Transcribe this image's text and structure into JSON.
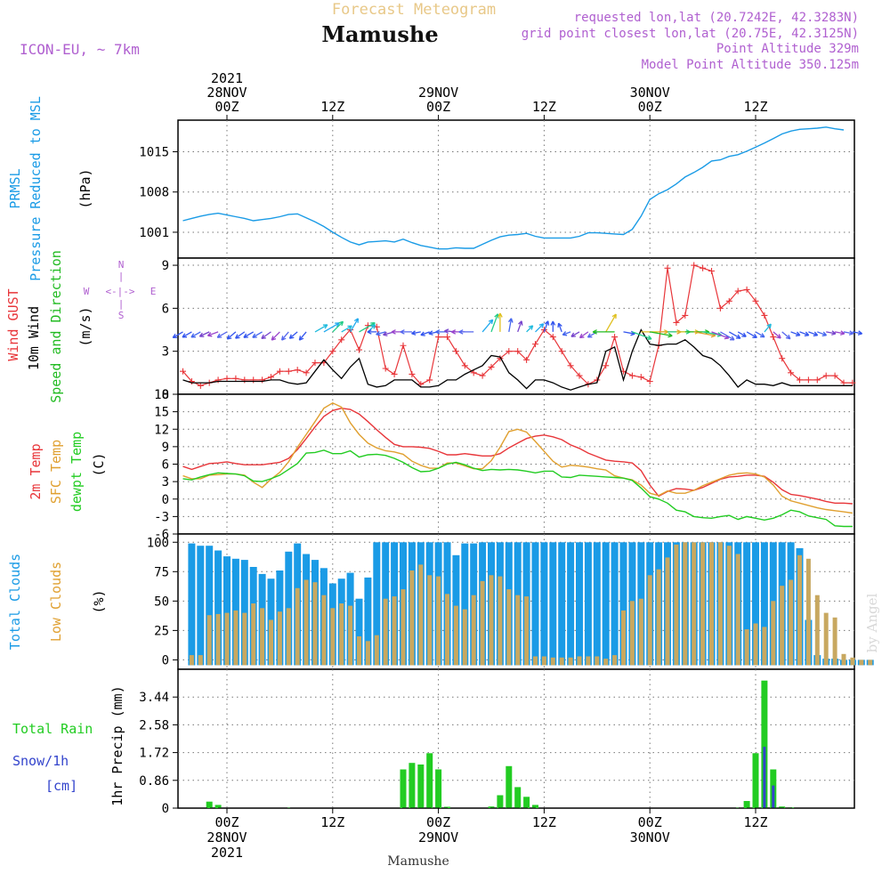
{
  "header": {
    "title_top": "Forecast Meteogram",
    "station": "Mamushe",
    "model": "ICON-EU, ~ 7km",
    "requested": "requested lon,lat (20.7242E, 42.3283N)",
    "gridpoint": "grid point closest lon,lat (20.75E, 42.3125N)",
    "point_alt": "Point Altitude 329m",
    "model_alt": "Model Point Altitude 350.125m",
    "bottom_label": "Mamushe",
    "watermark": "by Angel"
  },
  "colors": {
    "pressure": "#1a9be6",
    "gust": "#e8363a",
    "wind": "#000000",
    "dir": "#22bb22",
    "temp2m": "#e8363a",
    "sfc": "#e0a030",
    "dew": "#22cc22",
    "total_clouds": "#1a9be6",
    "low_clouds": "#c8a860",
    "rain": "#22cc22",
    "snow": "#3344cc",
    "purple": "#b060d0"
  },
  "time_axis": {
    "top_ticks": [
      {
        "h": 0,
        "lines": [
          "2021",
          "28NOV",
          "00Z"
        ]
      },
      {
        "h": 12,
        "lines": [
          "12Z"
        ]
      },
      {
        "h": 24,
        "lines": [
          "29NOV",
          "00Z"
        ]
      },
      {
        "h": 36,
        "lines": [
          "12Z"
        ]
      },
      {
        "h": 48,
        "lines": [
          "30NOV",
          "00Z"
        ]
      },
      {
        "h": 60,
        "lines": [
          "12Z"
        ]
      }
    ],
    "bottom_ticks": [
      {
        "h": 0,
        "lines": [
          "00Z",
          "28NOV",
          "2021"
        ]
      },
      {
        "h": 12,
        "lines": [
          "12Z"
        ]
      },
      {
        "h": 24,
        "lines": [
          "00Z",
          "29NOV"
        ]
      },
      {
        "h": 36,
        "lines": [
          "12Z"
        ]
      },
      {
        "h": 48,
        "lines": [
          "00Z",
          "30NOV"
        ]
      },
      {
        "h": 60,
        "lines": [
          "12Z"
        ]
      }
    ]
  },
  "panels": {
    "pressure": {
      "labels": [
        "PRMSL",
        "Pressure Reduced to MSL"
      ],
      "unit": "(hPa)",
      "ticks": [
        "1015",
        "1008",
        "1001"
      ]
    },
    "wind": {
      "labels": [
        "Wind GUST",
        "10m Wind",
        "Speed and Direction"
      ],
      "unit": "(m/s)",
      "ticks": [
        "9",
        "6",
        "3",
        "0"
      ],
      "compass": {
        "n": "N",
        "s": "S",
        "w": "W",
        "e": "E",
        "cross": "<-|->"
      }
    },
    "temp": {
      "labels": [
        "2m Temp",
        "SFC Temp",
        "dewpt Temp"
      ],
      "unit": "(C)",
      "ticks": [
        "18",
        "15",
        "12",
        "9",
        "6",
        "3",
        "0",
        "-3",
        "-6"
      ]
    },
    "clouds": {
      "labels": [
        "Total Clouds",
        "Low Clouds"
      ],
      "unit": "(%)",
      "ticks": [
        "100",
        "75",
        "50",
        "25",
        "0"
      ]
    },
    "precip": {
      "labels": [
        "Total  Rain",
        "Snow/1h",
        "[cm]"
      ],
      "unit": "1hr Precip (mm)",
      "ticks": [
        "3.44",
        "2.58",
        "1.72",
        "0.86",
        "0"
      ]
    }
  },
  "chart_data": [
    {
      "type": "line",
      "name": "pressure",
      "x_start_hour": -5,
      "x_step_hours": 1,
      "ylim": [
        996.5,
        1020.5
      ],
      "series": [
        {
          "values": [
            1003.0,
            1003.4,
            1003.8,
            1004.1,
            1004.3,
            1004.0,
            1003.7,
            1003.4,
            1003.0,
            1003.2,
            1003.4,
            1003.7,
            1004.1,
            1004.2,
            1003.5,
            1002.8,
            1002.0,
            1001.0,
            1000.1,
            999.3,
            998.8,
            999.3,
            999.4,
            999.5,
            999.3,
            999.8,
            999.2,
            998.7,
            998.4,
            998.1,
            998.1,
            998.3,
            998.2,
            998.2,
            998.9,
            999.6,
            1000.2,
            1000.5,
            1000.6,
            1000.8,
            1000.3,
            1000.0,
            1000.0,
            1000.0,
            1000.0,
            1000.3,
            1000.9,
            1000.9,
            1000.8,
            1000.7,
            1000.6,
            1001.5,
            1003.8,
            1006.7,
            1007.7,
            1008.4,
            1009.4,
            1010.6,
            1011.4,
            1012.3,
            1013.4,
            1013.6,
            1014.2,
            1014.5,
            1015.1,
            1015.8,
            1016.5,
            1017.3,
            1018.1,
            1018.6,
            1018.9,
            1019.0,
            1019.1,
            1019.3,
            1019.0,
            1018.8
          ]
        }
      ]
    },
    {
      "type": "line",
      "name": "wind",
      "x_start_hour": -5,
      "x_step_hours": 1,
      "ylim": [
        0,
        9.5
      ],
      "series": [
        {
          "name": "Wind GUST",
          "values": [
            1.6,
            0.9,
            0.6,
            0.8,
            1.0,
            1.1,
            1.1,
            1.0,
            1.0,
            1.0,
            1.2,
            1.6,
            1.6,
            1.7,
            1.5,
            2.2,
            2.2,
            3.0,
            3.8,
            4.5,
            3.1,
            4.8,
            4.7,
            1.8,
            1.4,
            3.4,
            1.4,
            0.7,
            1.0,
            4.0,
            4.0,
            3.0,
            2.0,
            1.5,
            1.3,
            1.9,
            2.5,
            3.0,
            3.0,
            2.4,
            3.5,
            4.5,
            4.0,
            3.0,
            2.0,
            1.3,
            0.7,
            1.0,
            2.0,
            4.0,
            1.6,
            1.3,
            1.2,
            0.9,
            3.4,
            8.8,
            5.0,
            5.5,
            9.0,
            8.8,
            8.6,
            6.0,
            6.5,
            7.2,
            7.3,
            6.5,
            5.5,
            4.0,
            2.5,
            1.5,
            1.0,
            1.0,
            1.0,
            1.3,
            1.3,
            0.8,
            0.8
          ]
        },
        {
          "name": "10m Wind",
          "values": [
            1.0,
            0.8,
            0.8,
            0.8,
            0.9,
            0.9,
            0.9,
            0.9,
            0.9,
            0.9,
            1.0,
            1.0,
            0.8,
            0.7,
            0.8,
            1.6,
            2.4,
            1.7,
            1.1,
            1.9,
            2.5,
            0.7,
            0.5,
            0.6,
            1.0,
            1.0,
            1.0,
            0.5,
            0.5,
            0.6,
            1.0,
            1.0,
            1.4,
            1.7,
            2.0,
            2.7,
            2.6,
            1.5,
            1.0,
            0.4,
            1.0,
            1.0,
            0.8,
            0.5,
            0.3,
            0.5,
            0.7,
            0.8,
            3.0,
            3.3,
            1.0,
            3.0,
            4.5,
            3.5,
            3.4,
            3.5,
            3.5,
            3.8,
            3.3,
            2.7,
            2.5,
            2.0,
            1.3,
            0.5,
            1.0,
            0.7,
            0.7,
            0.6,
            0.8,
            0.6,
            0.6,
            0.6,
            0.6,
            0.6,
            0.6,
            0.6,
            0.6
          ]
        }
      ]
    },
    {
      "type": "line",
      "name": "temp",
      "x_start_hour": -5,
      "x_step_hours": 1,
      "ylim": [
        -6,
        18
      ],
      "series": [
        {
          "name": "2m Temp",
          "values": [
            5.6,
            5.1,
            5.6,
            6.1,
            6.2,
            6.4,
            6.1,
            5.9,
            5.9,
            5.9,
            6.1,
            6.3,
            7.0,
            8.5,
            10.4,
            12.4,
            14.2,
            15.2,
            15.6,
            15.4,
            14.6,
            13.3,
            11.9,
            10.6,
            9.4,
            9.0,
            9.0,
            8.9,
            8.7,
            8.2,
            7.6,
            7.6,
            7.8,
            7.6,
            7.4,
            7.4,
            7.8,
            8.8,
            9.6,
            10.4,
            10.8,
            11.0,
            10.7,
            10.2,
            9.3,
            8.7,
            7.9,
            7.3,
            6.7,
            6.5,
            6.4,
            6.2,
            4.9,
            2.4,
            0.5,
            1.3,
            1.8,
            1.7,
            1.5,
            2.0,
            2.7,
            3.4,
            3.8,
            3.9,
            4.1,
            4.1,
            3.9,
            2.9,
            1.6,
            0.8,
            0.6,
            0.3,
            0.0,
            -0.4,
            -0.7,
            -0.7,
            -0.8
          ]
        },
        {
          "name": "SFC Temp",
          "values": [
            4.0,
            3.5,
            3.5,
            4.1,
            4.2,
            4.3,
            4.3,
            4.1,
            2.9,
            2.0,
            3.4,
            4.6,
            6.4,
            8.9,
            11.1,
            13.3,
            15.6,
            16.5,
            15.8,
            13.1,
            11.1,
            9.6,
            8.8,
            8.3,
            8.1,
            7.7,
            6.5,
            5.8,
            5.3,
            5.3,
            6.2,
            6.2,
            5.7,
            5.2,
            5.2,
            6.6,
            8.9,
            11.6,
            12.0,
            11.5,
            9.9,
            8.2,
            6.5,
            5.5,
            5.8,
            5.7,
            5.5,
            5.2,
            5.0,
            4.0,
            3.6,
            3.3,
            2.4,
            1.0,
            0.6,
            1.4,
            1.0,
            1.0,
            1.5,
            2.3,
            2.9,
            3.5,
            4.1,
            4.4,
            4.5,
            4.3,
            3.8,
            2.4,
            0.5,
            -0.3,
            -0.7,
            -1.1,
            -1.5,
            -1.8,
            -2.0,
            -2.2,
            -2.4
          ]
        },
        {
          "name": "dewpt Temp",
          "values": [
            3.5,
            3.3,
            3.8,
            4.2,
            4.5,
            4.4,
            4.3,
            4.0,
            3.1,
            3.0,
            3.5,
            4.1,
            5.1,
            6.1,
            7.9,
            8.0,
            8.4,
            7.8,
            7.8,
            8.3,
            7.2,
            7.6,
            7.7,
            7.5,
            7.0,
            6.3,
            5.4,
            4.7,
            4.8,
            5.3,
            6.0,
            6.3,
            5.9,
            5.3,
            4.9,
            5.1,
            5.0,
            5.1,
            5.0,
            4.8,
            4.5,
            4.8,
            4.8,
            3.8,
            3.7,
            4.1,
            4.0,
            3.9,
            3.8,
            3.7,
            3.6,
            3.2,
            1.9,
            0.4,
            0.0,
            -0.7,
            -1.9,
            -2.2,
            -3.0,
            -3.2,
            -3.3,
            -3.0,
            -2.8,
            -3.5,
            -3.0,
            -3.3,
            -3.6,
            -3.3,
            -2.7,
            -1.9,
            -2.2,
            -2.9,
            -3.2,
            -3.5,
            -4.6,
            -4.7,
            -4.7
          ]
        }
      ]
    },
    {
      "type": "bar",
      "name": "clouds",
      "x_start_hour": -4,
      "x_step_hours": 1,
      "ylim": [
        0,
        100
      ],
      "series": [
        {
          "name": "Total Clouds",
          "values": [
            99,
            97,
            97,
            93,
            88,
            86,
            85,
            79,
            73,
            69,
            76,
            92,
            99,
            90,
            85,
            78,
            65,
            69,
            74,
            52,
            70,
            100,
            100,
            100,
            100,
            100,
            100,
            100,
            100,
            100,
            89,
            99,
            99,
            100,
            100,
            100,
            100,
            100,
            100,
            100,
            100,
            100,
            100,
            100,
            100,
            100,
            100,
            100,
            100,
            100,
            100,
            100,
            100,
            100,
            100,
            100,
            100,
            100,
            100,
            100,
            100,
            100,
            100,
            100,
            100,
            100,
            100,
            100,
            100,
            95,
            34,
            4,
            1,
            1,
            0,
            0,
            0,
            0
          ]
        },
        {
          "name": "Low Clouds",
          "values": [
            4,
            4,
            38,
            39,
            40,
            42,
            40,
            48,
            44,
            34,
            41,
            44,
            61,
            68,
            66,
            55,
            44,
            48,
            46,
            20,
            16,
            21,
            52,
            54,
            60,
            76,
            81,
            72,
            71,
            56,
            46,
            43,
            55,
            67,
            72,
            71,
            60,
            55,
            54,
            3,
            3,
            2,
            2,
            2,
            3,
            3,
            3,
            1,
            4,
            42,
            50,
            52,
            72,
            77,
            87,
            98,
            100,
            100,
            100,
            100,
            100,
            97,
            90,
            26,
            31,
            28,
            50,
            63,
            68,
            89,
            86,
            55,
            40,
            36,
            5,
            2,
            0,
            0
          ]
        }
      ]
    },
    {
      "type": "bar",
      "name": "precip",
      "x_start_hour": -4,
      "x_step_hours": 1,
      "ylim": [
        0,
        4.3
      ],
      "series": [
        {
          "name": "Total Rain",
          "values": [
            0,
            0,
            0.2,
            0.1,
            0,
            0,
            0,
            0,
            0,
            0,
            0,
            0.01,
            0,
            0,
            0,
            0,
            0,
            0,
            0,
            0,
            0,
            0,
            0,
            0,
            1.2,
            1.4,
            1.35,
            1.7,
            1.2,
            0.04,
            0,
            0,
            0,
            0,
            0.05,
            0.4,
            1.3,
            0.65,
            0.35,
            0.1,
            0,
            0,
            0,
            0,
            0,
            0,
            0,
            0,
            0,
            0,
            0,
            0,
            0,
            0,
            0,
            0,
            0,
            0,
            0,
            0,
            0,
            0,
            0.01,
            0.22,
            1.7,
            3.95,
            1.2,
            0.05,
            0.02,
            0,
            0,
            0,
            0,
            0,
            0,
            0,
            0,
            0
          ]
        },
        {
          "name": "Snow/1h",
          "values": [
            0,
            0,
            0,
            0,
            0,
            0,
            0,
            0,
            0,
            0,
            0,
            0,
            0,
            0,
            0,
            0,
            0,
            0,
            0,
            0,
            0,
            0,
            0,
            0,
            0,
            0,
            0,
            0,
            0,
            0,
            0,
            0,
            0,
            0,
            0,
            0,
            0,
            0,
            0,
            0,
            0,
            0,
            0,
            0,
            0,
            0,
            0,
            0,
            0,
            0,
            0,
            0,
            0,
            0,
            0,
            0,
            0,
            0,
            0,
            0,
            0,
            0,
            0,
            0,
            0,
            1.9,
            0.7,
            0,
            0,
            0,
            0,
            0,
            0,
            0,
            0,
            0,
            0,
            0
          ]
        }
      ]
    },
    {
      "type": "vector",
      "name": "wind_direction_arrows",
      "x_start_hour": -5,
      "x_step_hours": 1,
      "series": [
        {
          "name": "Speed and Direction",
          "values": [
            240,
            240,
            240,
            245,
            250,
            240,
            230,
            235,
            240,
            240,
            235,
            225,
            220,
            230,
            220,
            60,
            60,
            45,
            60,
            30,
            60,
            45,
            270,
            255,
            255,
            270,
            270,
            260,
            250,
            260,
            270,
            275,
            270,
            270,
            40,
            20,
            0,
            10,
            20,
            45,
            45,
            20,
            0,
            340,
            250,
            240,
            235,
            240,
            30,
            270,
            100,
            110,
            90,
            100,
            90,
            90,
            90,
            90,
            100,
            100,
            110,
            120,
            120,
            120,
            120,
            120,
            40,
            130,
            130,
            110,
            110,
            110,
            110,
            100,
            100,
            100,
            100
          ]
        }
      ]
    }
  ]
}
